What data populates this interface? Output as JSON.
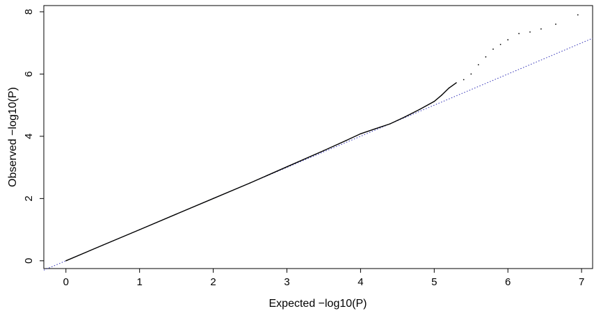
{
  "chart_data": {
    "type": "scatter",
    "title": "",
    "xlabel": "Expected −log10(P)",
    "ylabel": "Observed −log10(P)",
    "xlim": [
      -0.3,
      7.15
    ],
    "ylim": [
      -0.25,
      8.2
    ],
    "x_ticks": [
      0,
      1,
      2,
      3,
      4,
      5,
      6,
      7
    ],
    "y_ticks": [
      0,
      2,
      4,
      6,
      8
    ],
    "grid": false,
    "reference_line": {
      "x": [
        -0.3,
        7.15
      ],
      "y": [
        -0.3,
        7.15
      ],
      "color": "#2b2bb5",
      "style": "dotted"
    },
    "series": [
      {
        "color": "#000000",
        "points": [
          [
            0,
            0
          ],
          [
            0.5,
            0.5
          ],
          [
            1,
            1
          ],
          [
            1.5,
            1.5
          ],
          [
            2,
            2
          ],
          [
            2.5,
            2.5
          ],
          [
            3,
            3.02
          ],
          [
            3.5,
            3.54
          ],
          [
            3.8,
            3.86
          ],
          [
            4,
            4.08
          ],
          [
            4.2,
            4.24
          ],
          [
            4.4,
            4.4
          ],
          [
            4.6,
            4.62
          ],
          [
            4.8,
            4.86
          ],
          [
            5,
            5.12
          ],
          [
            5.1,
            5.32
          ],
          [
            5.2,
            5.55
          ],
          [
            5.3,
            5.72
          ],
          [
            5.4,
            5.82
          ],
          [
            5.5,
            6.0
          ],
          [
            5.6,
            6.3
          ],
          [
            5.7,
            6.55
          ],
          [
            5.8,
            6.8
          ],
          [
            5.9,
            6.95
          ],
          [
            6.0,
            7.1
          ],
          [
            6.15,
            7.3
          ],
          [
            6.3,
            7.35
          ],
          [
            6.45,
            7.45
          ],
          [
            6.65,
            7.6
          ],
          [
            6.95,
            7.9
          ]
        ]
      }
    ]
  }
}
